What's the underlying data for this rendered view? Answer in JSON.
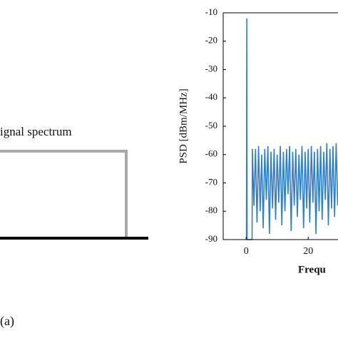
{
  "diagram": {
    "label": "ignal spectrum",
    "panel_label": "(a)"
  },
  "chart_data": {
    "type": "line",
    "y_label": "PSD [dBm/MHz]",
    "x_label": "Frequ",
    "xlim": [
      -7.4,
      29.6
    ],
    "xticks": [
      0,
      20
    ],
    "ylim": [
      -90,
      -10
    ],
    "yticks": [
      -10,
      -20,
      -30,
      -40,
      -50,
      -60,
      -70,
      -80,
      -90
    ],
    "series": [
      {
        "color": "#2f7fd0",
        "x": [
          0.1,
          0.2,
          0.3,
          1.9,
          2.0,
          2.5,
          3,
          3.5,
          4,
          4.5,
          5,
          5.5,
          6,
          6.5,
          7,
          7.5,
          8,
          8.5,
          9,
          9.5,
          10,
          10.5,
          11,
          11.5,
          12,
          12.5,
          13,
          13.5,
          14,
          14.5,
          15,
          15.5,
          16,
          16.5,
          17,
          17.5,
          18,
          18.5,
          19,
          19.5,
          20,
          20.5,
          21,
          21.5,
          22,
          22.5,
          23,
          23.5,
          24,
          24.5,
          25,
          25.5,
          26,
          26.5,
          27,
          27.5,
          28,
          28.5,
          29,
          29.5
        ],
        "values": [
          -90,
          -12,
          -90,
          -90,
          -58,
          -78,
          -58,
          -84,
          -57,
          -80,
          -60,
          -86,
          -58,
          -76,
          -57,
          -88,
          -59,
          -79,
          -58,
          -83,
          -60,
          -77,
          -57,
          -85,
          -59,
          -80,
          -58,
          -74,
          -57,
          -87,
          -59,
          -78,
          -58,
          -82,
          -60,
          -76,
          -57,
          -86,
          -59,
          -79,
          -58,
          -84,
          -57,
          -77,
          -59,
          -88,
          -58,
          -80,
          -57,
          -83,
          -59,
          -76,
          -56,
          -85,
          -58,
          -79,
          -57,
          -82,
          -56,
          -78
        ]
      }
    ]
  }
}
